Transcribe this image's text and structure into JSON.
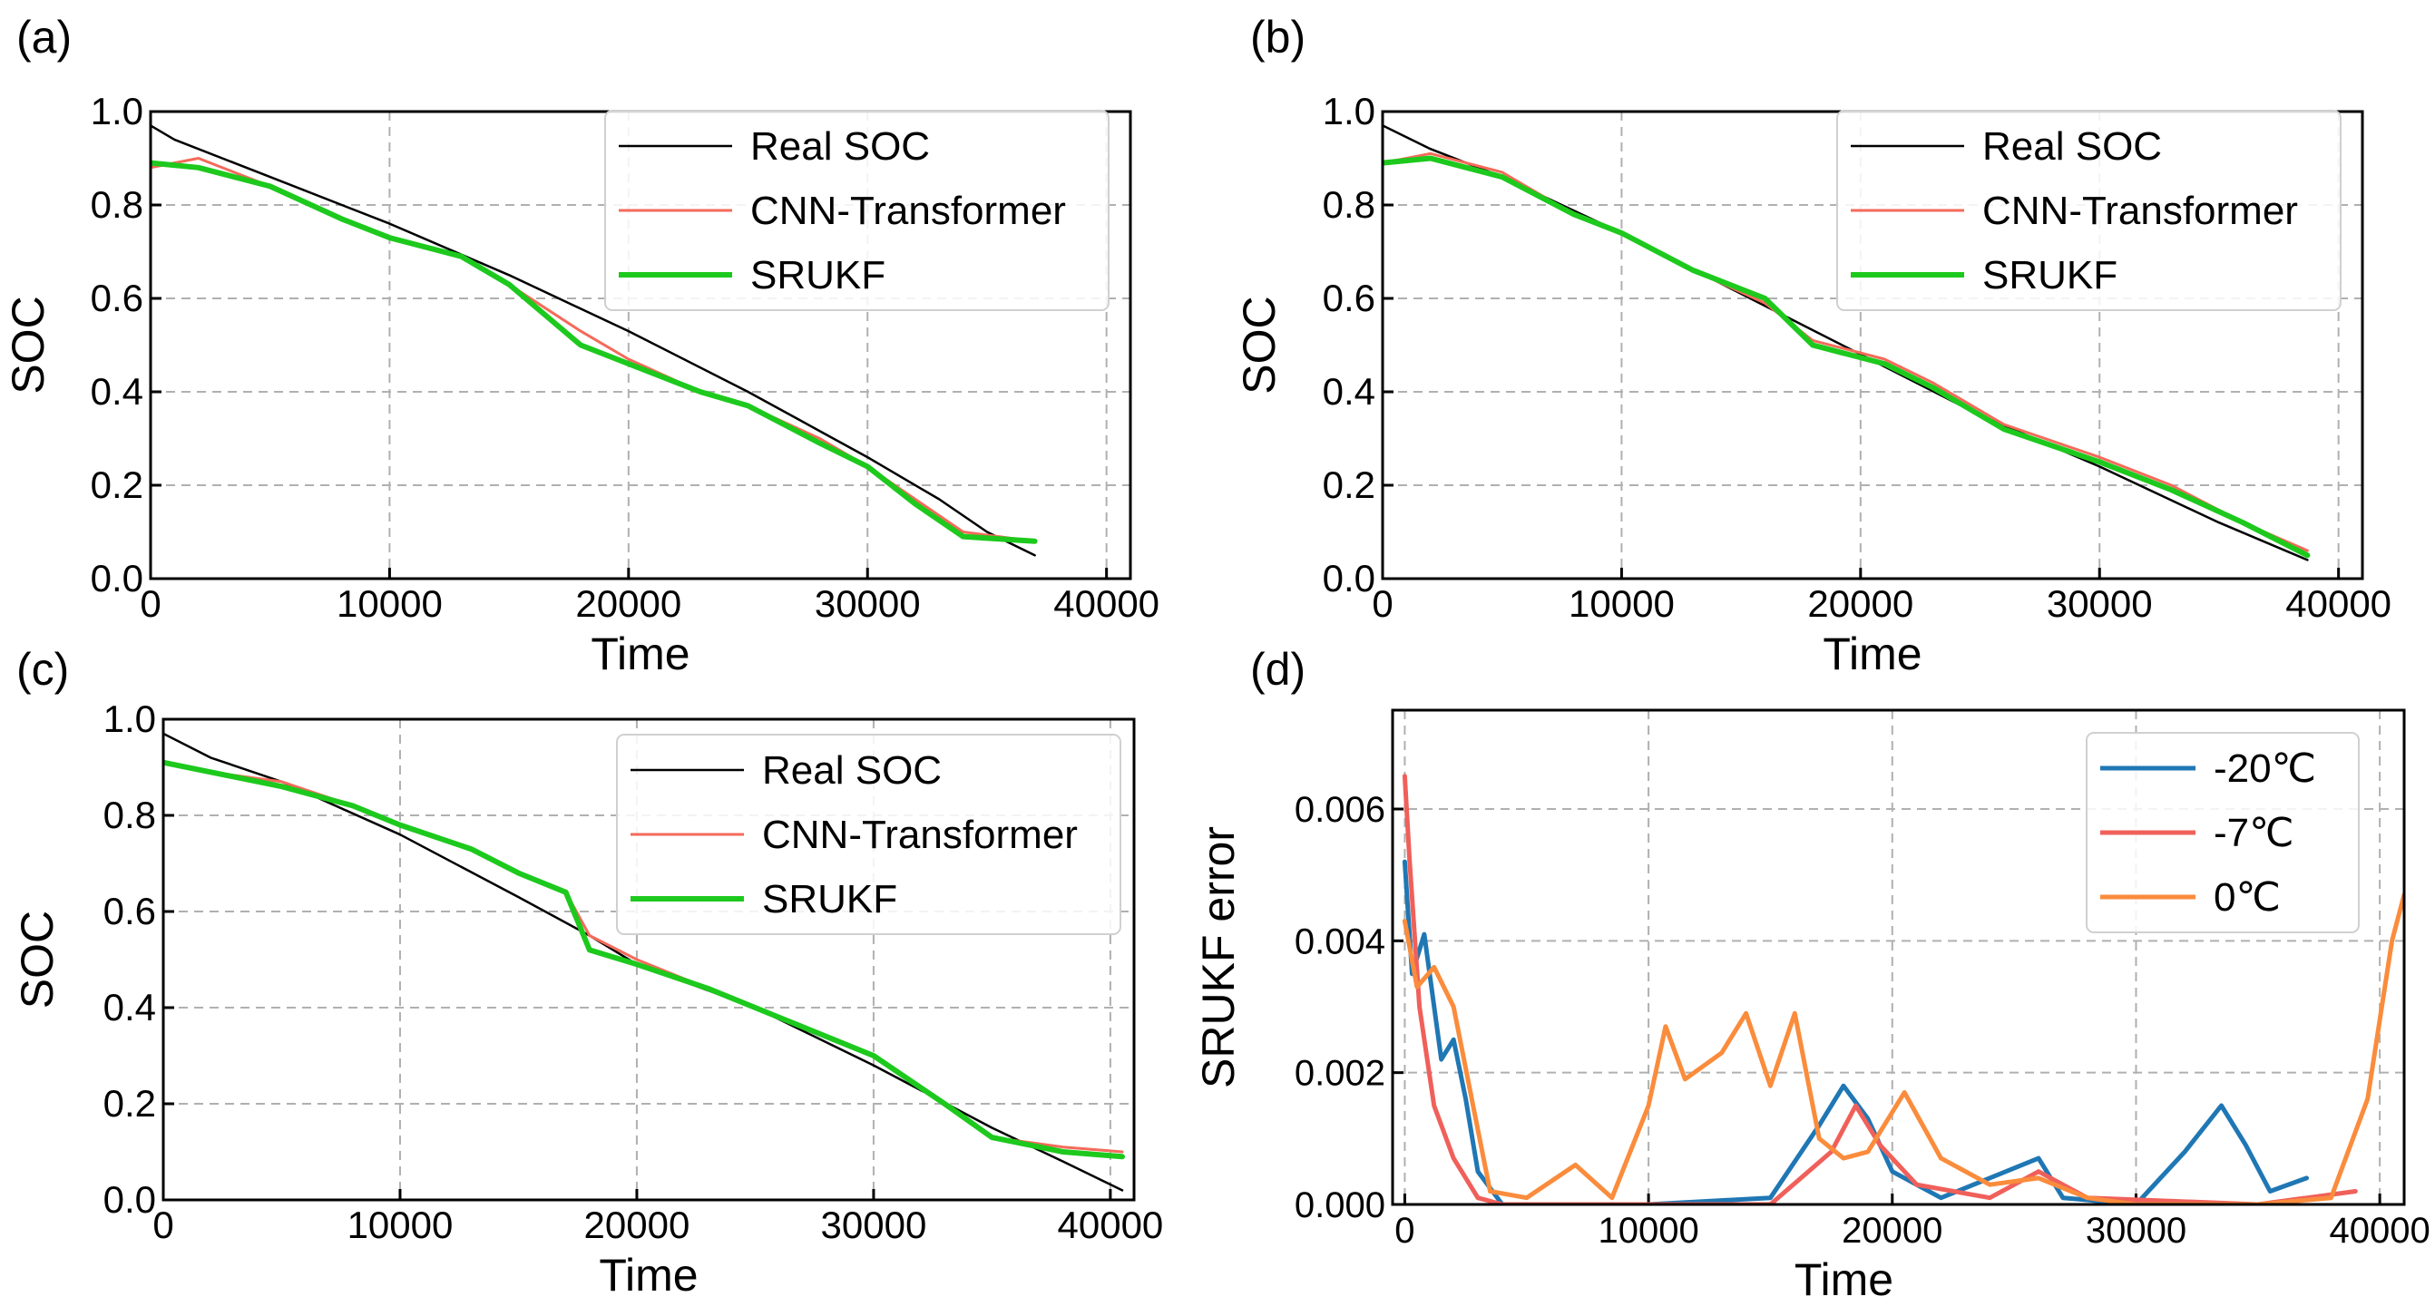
{
  "figure": {
    "panels": [
      {
        "id": "a",
        "label": "(a)"
      },
      {
        "id": "b",
        "label": "(b)"
      },
      {
        "id": "c",
        "label": "(c)"
      },
      {
        "id": "d",
        "label": "(d)"
      }
    ]
  },
  "chart_data": [
    {
      "panel": "(a)",
      "type": "line",
      "xlabel": "Time",
      "ylabel": "SOC",
      "xlim": [
        0,
        41000
      ],
      "ylim": [
        0,
        1.0
      ],
      "xticks": [
        "0",
        "10000",
        "20000",
        "30000",
        "40000"
      ],
      "yticks": [
        "0.0",
        "0.2",
        "0.4",
        "0.6",
        "0.8",
        "1.0"
      ],
      "grid": true,
      "legend": "top-right",
      "series": [
        {
          "name": "Real SOC",
          "color": "#000000",
          "x": [
            0,
            1000,
            5000,
            10000,
            15000,
            20000,
            25000,
            30000,
            33000,
            35000,
            37000
          ],
          "values": [
            0.97,
            0.94,
            0.86,
            0.76,
            0.65,
            0.53,
            0.4,
            0.26,
            0.17,
            0.1,
            0.05
          ]
        },
        {
          "name": "CNN-Transformer",
          "color": "#F46A5A",
          "x": [
            0,
            2000,
            5000,
            8000,
            10000,
            13000,
            15000,
            18000,
            20000,
            23000,
            25000,
            28000,
            30000,
            32000,
            34000,
            37000
          ],
          "values": [
            0.88,
            0.9,
            0.84,
            0.77,
            0.73,
            0.69,
            0.63,
            0.53,
            0.47,
            0.4,
            0.37,
            0.3,
            0.24,
            0.17,
            0.1,
            0.08
          ]
        },
        {
          "name": "SRUKF",
          "color": "#1DC91D",
          "x": [
            0,
            2000,
            5000,
            8000,
            10000,
            13000,
            15000,
            18000,
            20000,
            23000,
            25000,
            28000,
            30000,
            32000,
            34000,
            37000
          ],
          "values": [
            0.89,
            0.88,
            0.84,
            0.77,
            0.73,
            0.69,
            0.63,
            0.5,
            0.46,
            0.4,
            0.37,
            0.29,
            0.24,
            0.16,
            0.09,
            0.08
          ]
        }
      ]
    },
    {
      "panel": "(b)",
      "type": "line",
      "xlabel": "Time",
      "ylabel": "SOC",
      "xlim": [
        0,
        41000
      ],
      "ylim": [
        0,
        1.0
      ],
      "xticks": [
        "0",
        "10000",
        "20000",
        "30000",
        "40000"
      ],
      "yticks": [
        "0.0",
        "0.2",
        "0.4",
        "0.6",
        "0.8",
        "1.0"
      ],
      "grid": true,
      "legend": "top-right",
      "series": [
        {
          "name": "Real SOC",
          "color": "#000000",
          "x": [
            0,
            2000,
            5000,
            10000,
            15000,
            20000,
            25000,
            30000,
            35000,
            38700
          ],
          "values": [
            0.97,
            0.92,
            0.86,
            0.74,
            0.61,
            0.48,
            0.35,
            0.24,
            0.12,
            0.04
          ]
        },
        {
          "name": "CNN-Transformer",
          "color": "#F46A5A",
          "x": [
            0,
            2000,
            5000,
            8000,
            10000,
            13000,
            16000,
            18000,
            21000,
            23000,
            26000,
            30000,
            33000,
            36000,
            38700
          ],
          "values": [
            0.89,
            0.91,
            0.87,
            0.78,
            0.74,
            0.66,
            0.59,
            0.51,
            0.47,
            0.42,
            0.33,
            0.26,
            0.2,
            0.12,
            0.06
          ]
        },
        {
          "name": "SRUKF",
          "color": "#1DC91D",
          "x": [
            0,
            2000,
            5000,
            8000,
            10000,
            13000,
            16000,
            18000,
            21000,
            23000,
            26000,
            30000,
            33000,
            36000,
            38700
          ],
          "values": [
            0.89,
            0.9,
            0.86,
            0.78,
            0.74,
            0.66,
            0.6,
            0.5,
            0.46,
            0.41,
            0.32,
            0.25,
            0.19,
            0.12,
            0.05
          ]
        }
      ]
    },
    {
      "panel": "(c)",
      "type": "line",
      "xlabel": "Time",
      "ylabel": "SOC",
      "xlim": [
        0,
        41000
      ],
      "ylim": [
        0,
        1.0
      ],
      "xticks": [
        "0",
        "10000",
        "20000",
        "30000",
        "40000"
      ],
      "yticks": [
        "0.0",
        "0.2",
        "0.4",
        "0.6",
        "0.8",
        "1.0"
      ],
      "grid": true,
      "legend": "top-right",
      "series": [
        {
          "name": "Real SOC",
          "color": "#000000",
          "x": [
            0,
            2000,
            5000,
            10000,
            15000,
            18000,
            20000,
            25000,
            30000,
            35000,
            38000,
            40500
          ],
          "values": [
            0.97,
            0.92,
            0.87,
            0.76,
            0.63,
            0.55,
            0.49,
            0.4,
            0.28,
            0.15,
            0.08,
            0.02
          ]
        },
        {
          "name": "CNN-Transformer",
          "color": "#F46A5A",
          "x": [
            0,
            2000,
            5000,
            8000,
            10000,
            13000,
            15000,
            17000,
            18000,
            20000,
            23000,
            26000,
            30000,
            33000,
            35000,
            38000,
            40500
          ],
          "values": [
            0.91,
            0.89,
            0.87,
            0.82,
            0.78,
            0.73,
            0.68,
            0.64,
            0.55,
            0.5,
            0.44,
            0.38,
            0.3,
            0.2,
            0.13,
            0.11,
            0.1
          ]
        },
        {
          "name": "SRUKF",
          "color": "#1DC91D",
          "x": [
            0,
            2000,
            5000,
            8000,
            10000,
            13000,
            15000,
            17000,
            18000,
            20000,
            23000,
            26000,
            30000,
            33000,
            35000,
            38000,
            40500
          ],
          "values": [
            0.91,
            0.89,
            0.86,
            0.82,
            0.78,
            0.73,
            0.68,
            0.64,
            0.52,
            0.49,
            0.44,
            0.38,
            0.3,
            0.2,
            0.13,
            0.1,
            0.09
          ]
        }
      ]
    },
    {
      "panel": "(d)",
      "type": "line",
      "xlabel": "Time",
      "ylabel": "SRUKF error",
      "xlim": [
        -500,
        41000
      ],
      "ylim": [
        0,
        0.0075
      ],
      "xticks": [
        "0",
        "10000",
        "20000",
        "30000",
        "40000"
      ],
      "yticks": [
        "0.000",
        "0.002",
        "0.004",
        "0.006"
      ],
      "grid": true,
      "legend": "top-right",
      "series": [
        {
          "name": "-20℃",
          "color": "#1F77B4",
          "x": [
            0,
            300,
            800,
            1500,
            2000,
            2500,
            3000,
            4000,
            6000,
            10000,
            15000,
            17000,
            18000,
            19000,
            20000,
            22000,
            26000,
            27000,
            30000,
            32000,
            33500,
            34500,
            35500,
            37000
          ],
          "values": [
            0.0052,
            0.0035,
            0.0041,
            0.0022,
            0.0025,
            0.0016,
            0.0005,
            0.0,
            0.0,
            0.0,
            0.0001,
            0.0012,
            0.0018,
            0.0013,
            0.0005,
            0.0001,
            0.0007,
            0.0001,
            0.0,
            0.0008,
            0.0015,
            0.0009,
            0.0002,
            0.0004
          ]
        },
        {
          "name": "-7℃",
          "color": "#F0605A",
          "x": [
            0,
            200,
            600,
            1200,
            2000,
            3000,
            4000,
            8000,
            15000,
            17500,
            18500,
            19500,
            21000,
            24000,
            26000,
            28000,
            35000,
            39000
          ],
          "values": [
            0.0065,
            0.0052,
            0.003,
            0.0015,
            0.0007,
            0.0001,
            0.0,
            0.0,
            0.0,
            0.0008,
            0.0015,
            0.0009,
            0.0003,
            0.0001,
            0.0005,
            0.0001,
            0.0,
            0.0002
          ]
        },
        {
          "name": "0℃",
          "color": "#FA8C3C",
          "x": [
            0,
            500,
            1200,
            2000,
            2800,
            3500,
            5000,
            7000,
            8500,
            10000,
            10700,
            11500,
            13000,
            14000,
            15000,
            16000,
            17000,
            18000,
            19000,
            20500,
            22000,
            24000,
            26000,
            28000,
            30000,
            35000,
            38000,
            39500,
            40500,
            41000
          ],
          "values": [
            0.0043,
            0.0033,
            0.0036,
            0.003,
            0.0015,
            0.0002,
            0.0001,
            0.0006,
            0.0001,
            0.0015,
            0.0027,
            0.0019,
            0.0023,
            0.0029,
            0.0018,
            0.0029,
            0.001,
            0.0007,
            0.0008,
            0.0017,
            0.0007,
            0.0003,
            0.0004,
            0.0001,
            0.0,
            0.0,
            0.0001,
            0.0016,
            0.004,
            0.0047
          ]
        }
      ]
    }
  ]
}
